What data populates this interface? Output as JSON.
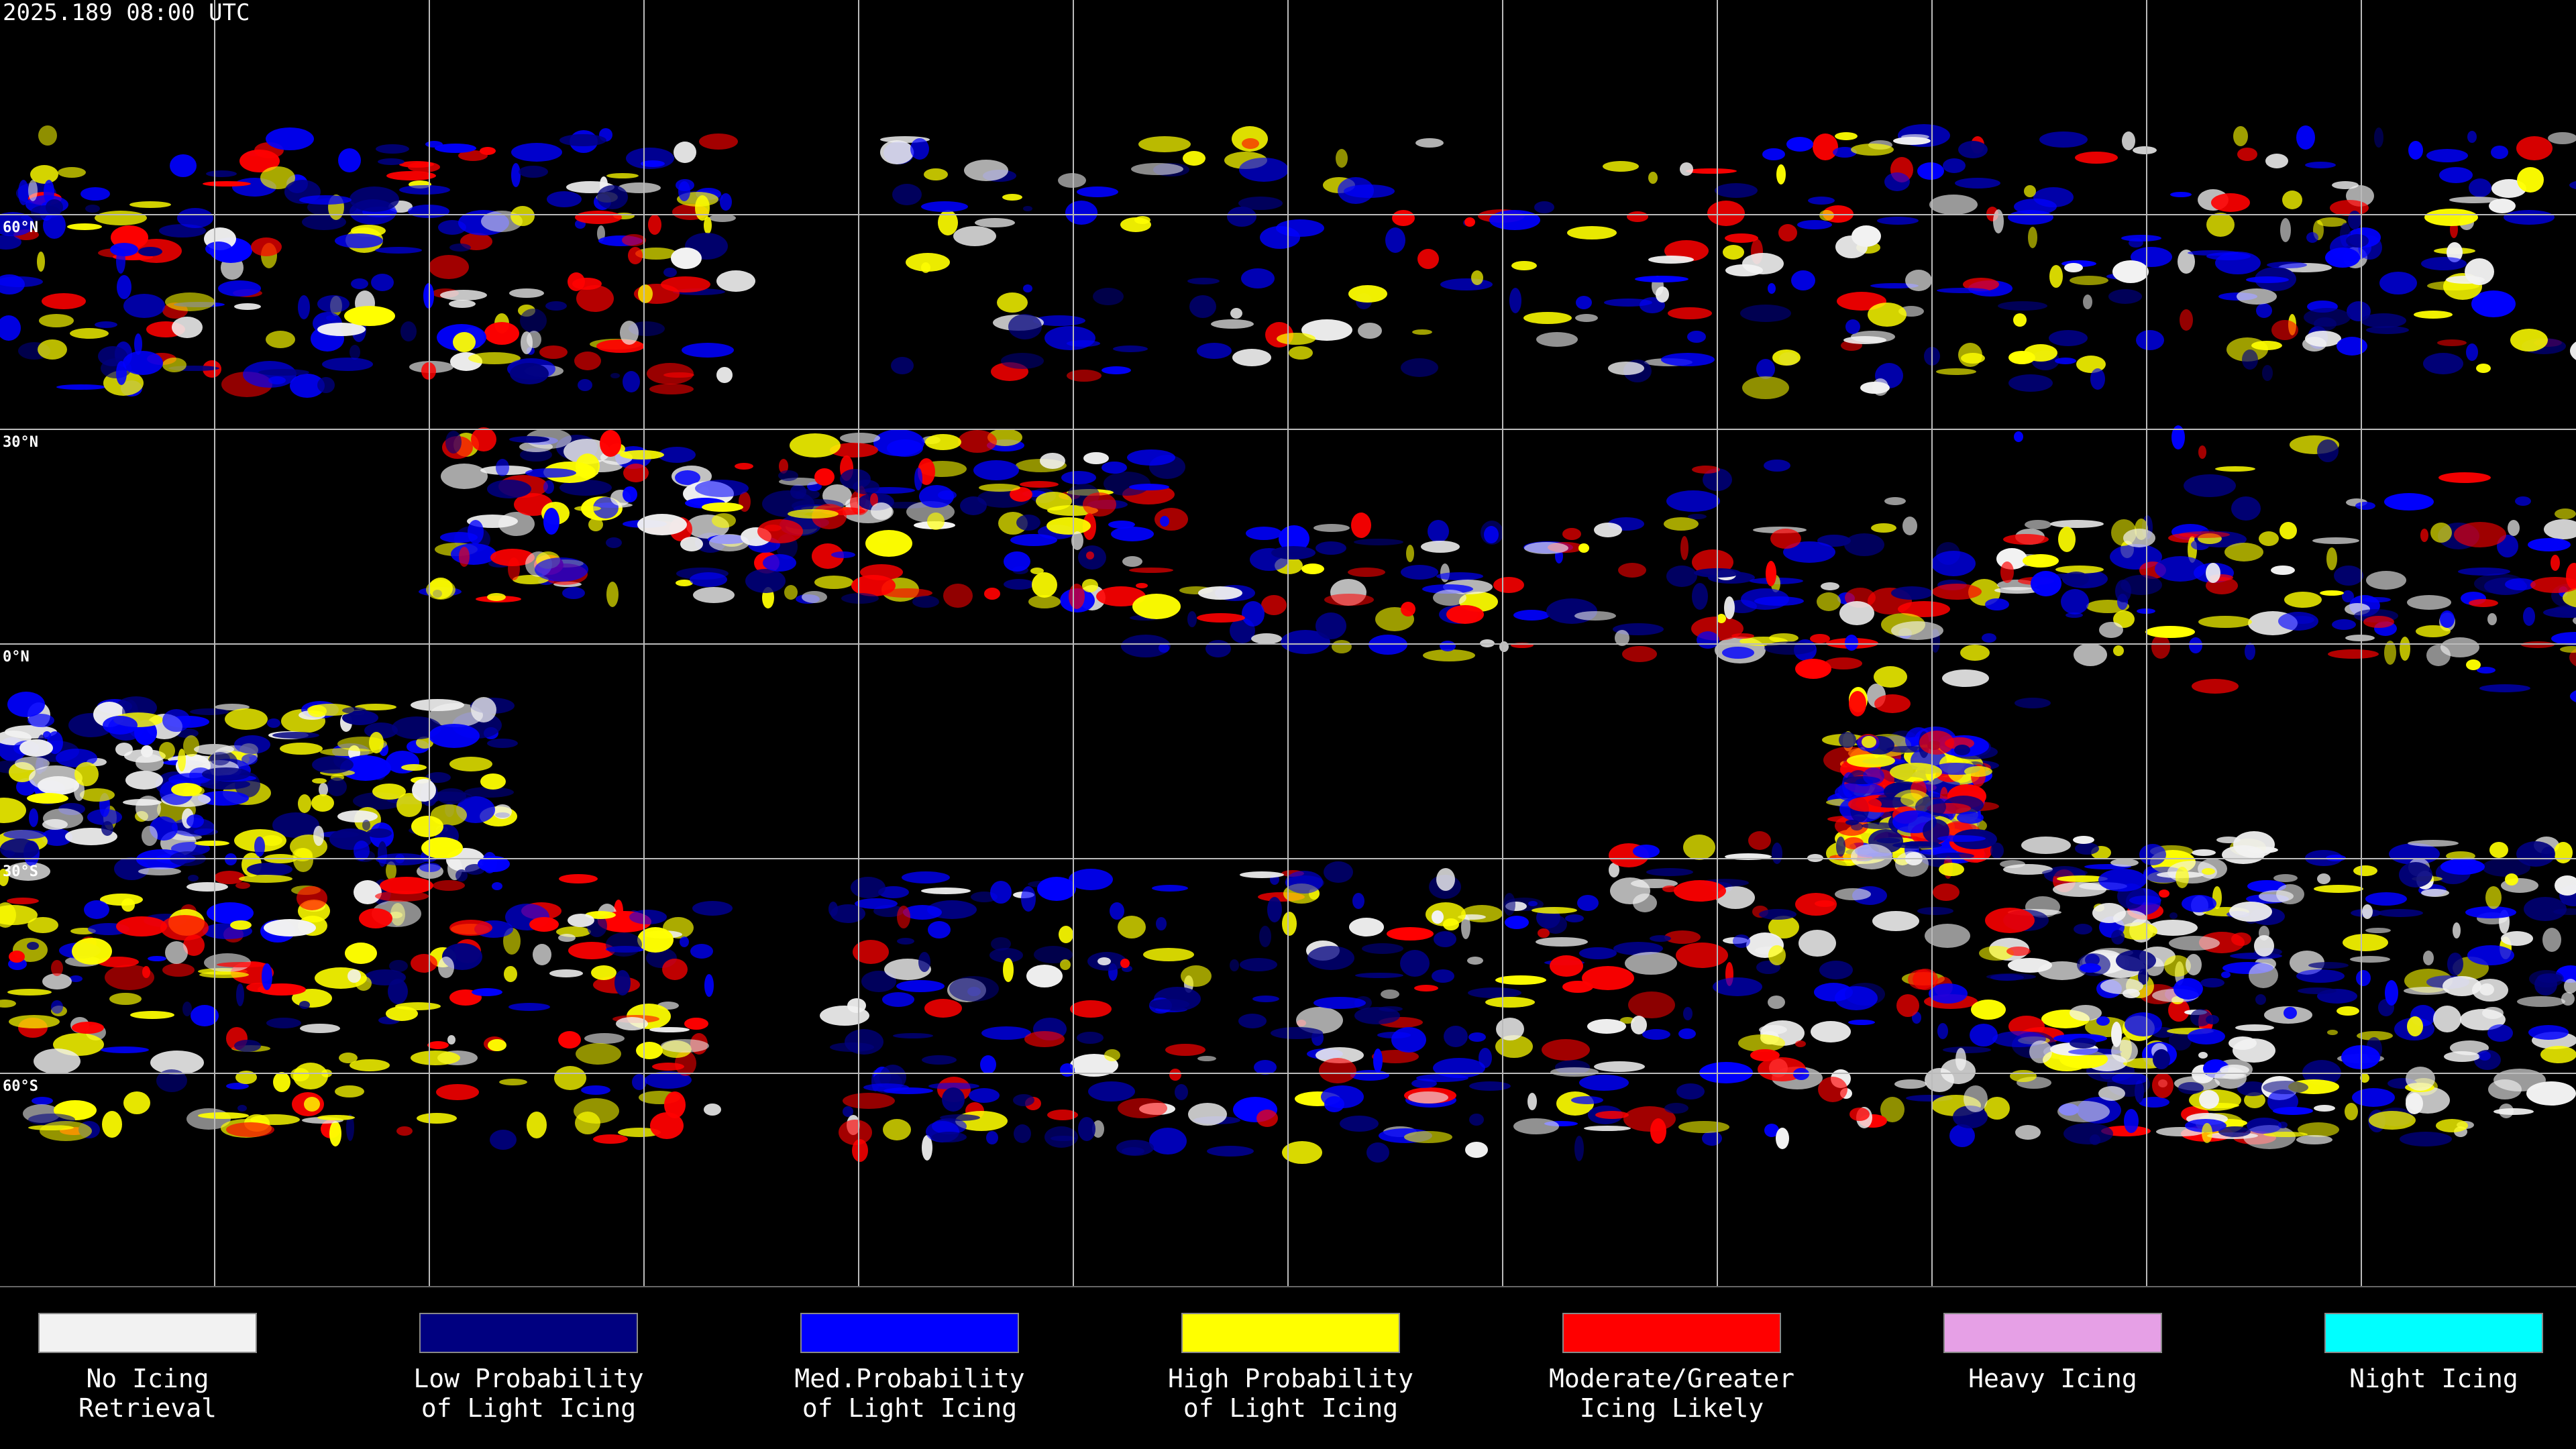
{
  "header": {
    "title": "2025.189 08:00 UTC"
  },
  "grid": {
    "lat_labels": [
      "60°N",
      "30°N",
      "0°N",
      "30°S",
      "60°S"
    ]
  },
  "legend": {
    "items": [
      {
        "lines": [
          "No Icing",
          "Retrieval"
        ],
        "color": "#f2f2f2"
      },
      {
        "lines": [
          "Low Probability",
          "of Light Icing"
        ],
        "color": "#000080"
      },
      {
        "lines": [
          "Med.Probability",
          "of Light Icing"
        ],
        "color": "#0000ff"
      },
      {
        "lines": [
          "High Probability",
          "of Light Icing"
        ],
        "color": "#ffff00"
      },
      {
        "lines": [
          "Moderate/Greater",
          "Icing Likely"
        ],
        "color": "#ff0000"
      },
      {
        "lines": [
          "Heavy Icing"
        ],
        "color": "#e6a0e6"
      },
      {
        "lines": [
          "Night Icing"
        ],
        "color": "#00ffff"
      }
    ]
  }
}
